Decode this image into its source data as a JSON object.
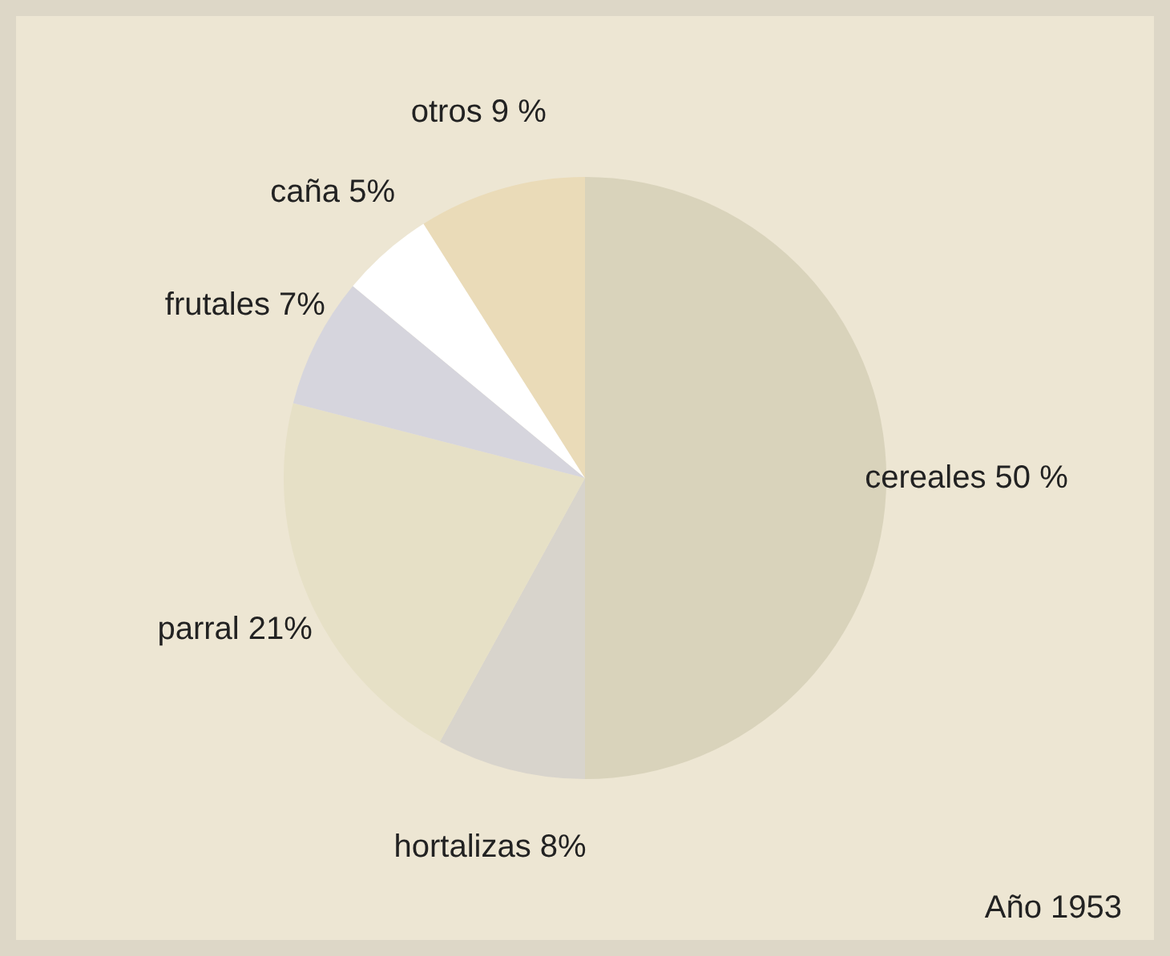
{
  "chart_data": {
    "type": "pie",
    "categories": [
      "cereales",
      "hortalizas",
      "parral",
      "frutales",
      "caña",
      "otros"
    ],
    "values": [
      50,
      8,
      21,
      7,
      5,
      9
    ],
    "value_labels": [
      "50 %",
      "8%",
      "21%",
      "7%",
      "5%",
      "9 %"
    ],
    "colors": [
      "#d9d3bb",
      "#d8d4cc",
      "#e6e0c6",
      "#d6d5dd",
      "#ffffff",
      "#eadbb8"
    ],
    "annotations": [
      "Año 1953"
    ]
  }
}
